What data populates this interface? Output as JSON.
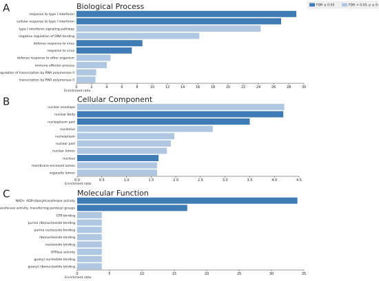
{
  "legend": [
    {
      "name": "FDR ≤ 0.05",
      "color": "#3f7cb6"
    },
    {
      "name": "FDR > 0.05, p ≤ 0.05",
      "color": "#afc7e1"
    }
  ],
  "chart_data": [
    {
      "type": "barh",
      "panel": "A",
      "title": "Biological Process",
      "xlabel": "Enrichment ratio",
      "categories": [
        "response to type I interferon",
        "cellular response to type I interferon",
        "type I interferon signaling pathway",
        "negative regulation of DNA binding",
        "defense response to virus",
        "response to virus",
        "defense response to other organism",
        "immune effector process",
        "regulation of transcription by RNA polymerase II",
        "transcription by RNA polymerase II"
      ],
      "values": [
        29,
        27,
        24.3,
        16.2,
        8.7,
        7.3,
        4.5,
        4.0,
        2.6,
        2.5
      ],
      "colors": [
        "#3f7cb6",
        "#3f7cb6",
        "#afc7e1",
        "#afc7e1",
        "#3f7cb6",
        "#3f7cb6",
        "#afc7e1",
        "#afc7e1",
        "#afc7e1",
        "#afc7e1"
      ],
      "xlim": [
        0,
        30
      ],
      "xticks": [
        0,
        2,
        4,
        6,
        8,
        10,
        12,
        14,
        16,
        18,
        20,
        22,
        24,
        26,
        28,
        30
      ]
    },
    {
      "type": "barh",
      "panel": "B",
      "title": "Cellular Component",
      "xlabel": "Enrichment ratio",
      "categories": [
        "nuclear envelope",
        "nuclear body",
        "nucleoplasm part",
        "nucleolus",
        "nucleoplasm",
        "nuclear part",
        "nuclear lumen",
        "nucleus",
        "membrane-enclosed lumen",
        "organelle lumen"
      ],
      "values": [
        4.2,
        4.18,
        3.5,
        2.75,
        1.97,
        1.9,
        1.82,
        1.65,
        1.62,
        1.62
      ],
      "colors": [
        "#afc7e1",
        "#3f7cb6",
        "#3f7cb6",
        "#afc7e1",
        "#afc7e1",
        "#afc7e1",
        "#afc7e1",
        "#3f7cb6",
        "#afc7e1",
        "#afc7e1"
      ],
      "xlim": [
        0,
        4.5
      ],
      "xticks": [
        {
          "value": 0,
          "label": "0.0"
        },
        0.5,
        {
          "value": 1,
          "label": "1.0"
        },
        1.5,
        {
          "value": 2,
          "label": "2.0"
        },
        2.5,
        {
          "value": 3,
          "label": "3.0"
        },
        3.5,
        {
          "value": 4,
          "label": "4.0"
        },
        4.5
      ]
    },
    {
      "type": "barh",
      "panel": "C",
      "title": "Molecular Function",
      "xlabel": "Enrichment ratio",
      "categories": [
        "NAD+ ADP-ribosyltransferase activity",
        "transferase activity, transferring pentosyl groups",
        "GTP binding",
        "purine ribonucleoside binding",
        "purine nucleoside binding",
        "ribonucleoside binding",
        "nucleoside binding",
        "GTPase activity",
        "guanyl nucleotide binding",
        "guanyl ribonucleotide binding"
      ],
      "values": [
        34,
        17,
        3.8,
        3.8,
        3.8,
        3.8,
        3.8,
        3.8,
        3.8,
        3.8
      ],
      "colors": [
        "#3f7cb6",
        "#3f7cb6",
        "#afc7e1",
        "#afc7e1",
        "#afc7e1",
        "#afc7e1",
        "#afc7e1",
        "#afc7e1",
        "#afc7e1",
        "#afc7e1"
      ],
      "xlim": [
        0,
        35
      ],
      "xticks": [
        0,
        5,
        10,
        15,
        20,
        25,
        30,
        35
      ]
    }
  ]
}
